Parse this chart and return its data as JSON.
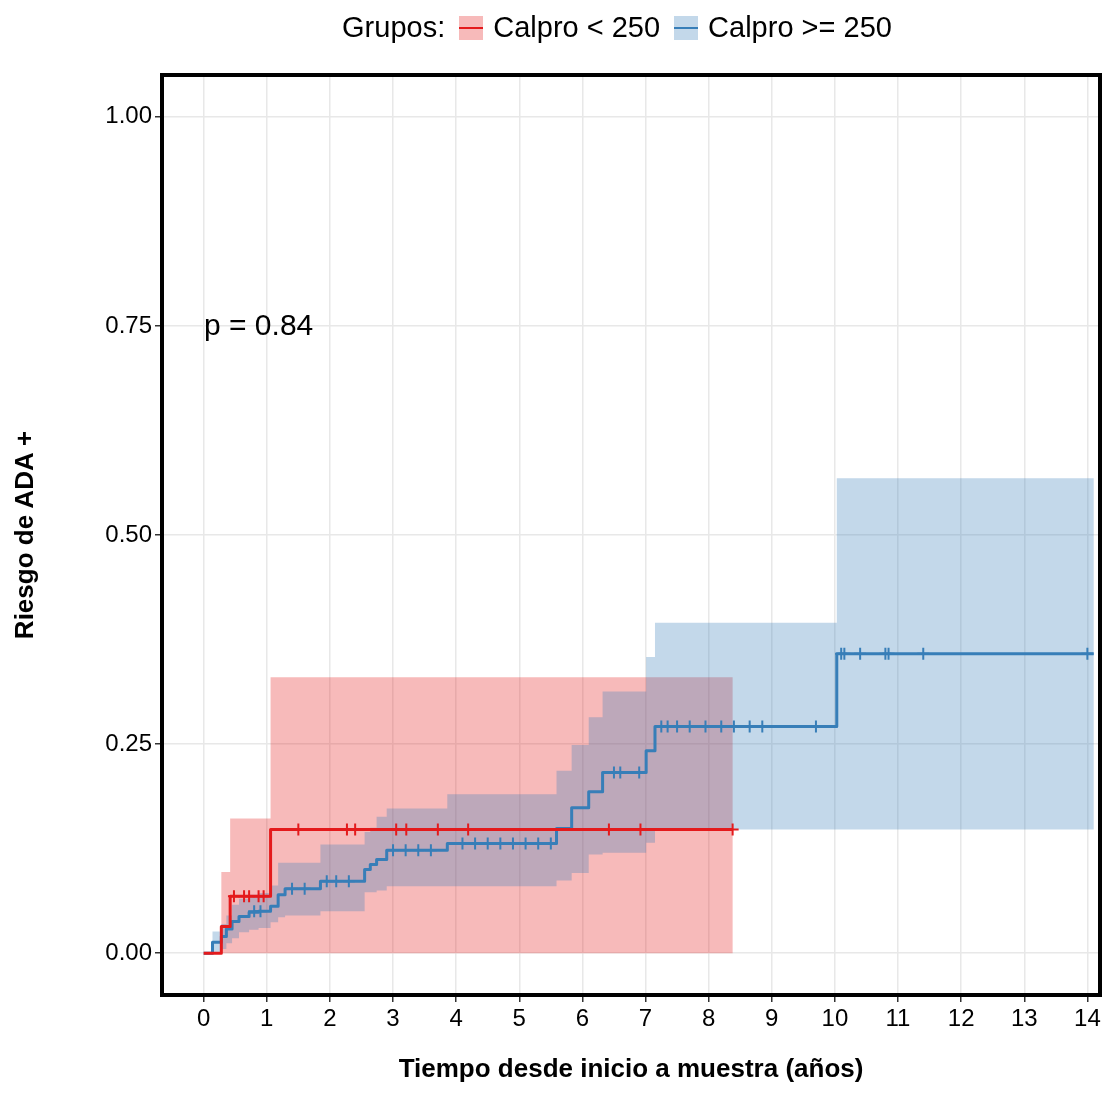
{
  "chart_data": {
    "type": "step",
    "xlabel": "Tiempo desde inicio a muestra (años)",
    "ylabel": "Riesgo de ADA +",
    "legend_title": "Grupos:",
    "legend": "top",
    "grid": true,
    "line_style": "solid",
    "annotations": [
      "p = 0.84"
    ],
    "xlim": [
      -0.66,
      14.2
    ],
    "xticks": [
      0,
      1,
      2,
      3,
      4,
      5,
      6,
      7,
      8,
      9,
      10,
      11,
      12,
      13,
      14
    ],
    "ylim": [
      -0.05,
      1.05
    ],
    "yticks": [
      {
        "value": 0,
        "label": "0.00"
      },
      {
        "value": 0.25,
        "label": "0.25"
      },
      {
        "value": 0.5,
        "label": "0.50"
      },
      {
        "value": 0.75,
        "label": "0.75"
      },
      {
        "value": 1,
        "label": "1.00"
      }
    ],
    "series": [
      {
        "name": "Calpro < 250",
        "color": "#e41a1c",
        "marker": "none",
        "x": [
          0,
          0.28,
          0.42,
          1.06,
          8.38
        ],
        "values": [
          0,
          0.032,
          0.068,
          0.148,
          0.148
        ],
        "lower": [
          0,
          0,
          0,
          0,
          0
        ],
        "upper": [
          0,
          0.097,
          0.161,
          0.33,
          0.33
        ]
      },
      {
        "name": "Calpro >= 250",
        "color": "#377eb8",
        "marker": "none",
        "x": [
          0,
          0.14,
          0.28,
          0.36,
          0.45,
          0.56,
          0.72,
          0.87,
          1.06,
          1.18,
          1.29,
          1.85,
          2.55,
          2.64,
          2.74,
          2.9,
          3.86,
          5.59,
          5.83,
          6.1,
          6.32,
          7.01,
          7.15,
          10.03,
          14.1
        ],
        "values": [
          0,
          0.013,
          0.02,
          0.029,
          0.038,
          0.044,
          0.049,
          0.05,
          0.056,
          0.07,
          0.077,
          0.086,
          0.1,
          0.106,
          0.112,
          0.123,
          0.131,
          0.149,
          0.174,
          0.193,
          0.216,
          0.242,
          0.271,
          0.358,
          0.358
        ],
        "lower": [
          0,
          0,
          0.005,
          0.012,
          0.018,
          0.025,
          0.028,
          0.03,
          0.037,
          0.043,
          0.045,
          0.05,
          0.073,
          0.073,
          0.075,
          0.08,
          0.08,
          0.087,
          0.096,
          0.118,
          0.12,
          0.132,
          0.148,
          0.148,
          0.148
        ],
        "upper": [
          0,
          0.026,
          0.035,
          0.045,
          0.058,
          0.065,
          0.07,
          0.072,
          0.081,
          0.108,
          0.108,
          0.13,
          0.145,
          0.15,
          0.163,
          0.173,
          0.19,
          0.218,
          0.249,
          0.282,
          0.313,
          0.354,
          0.395,
          0.568,
          0.568
        ]
      },
      {
        "type": "scatter",
        "color": "#e41a1c",
        "marker": "cross",
        "x": [
          0.48,
          0.64,
          0.72,
          0.87,
          0.95,
          1.5,
          2.27,
          2.4,
          3.05,
          3.21,
          3.71,
          4.19,
          6.42,
          6.92,
          8.38
        ],
        "values": [
          0.068,
          0.068,
          0.068,
          0.068,
          0.068,
          0.148,
          0.148,
          0.148,
          0.148,
          0.148,
          0.148,
          0.148,
          0.148,
          0.148,
          0.148
        ]
      },
      {
        "type": "scatter",
        "color": "#377eb8",
        "marker": "cross",
        "x": [
          0.8,
          0.9,
          1.4,
          1.6,
          1.95,
          2.1,
          2.3,
          3.0,
          3.2,
          3.4,
          3.6,
          4.1,
          4.3,
          4.5,
          4.7,
          4.9,
          5.1,
          5.3,
          5.5,
          6.5,
          6.6,
          6.9,
          7.25,
          7.35,
          7.5,
          7.7,
          7.95,
          8.2,
          8.4,
          8.65,
          8.85,
          9.7,
          10.1,
          10.15,
          10.4,
          10.8,
          10.85,
          11.4,
          14.0
        ],
        "values": [
          0.05,
          0.05,
          0.077,
          0.077,
          0.086,
          0.086,
          0.086,
          0.123,
          0.123,
          0.123,
          0.123,
          0.131,
          0.131,
          0.131,
          0.131,
          0.131,
          0.131,
          0.131,
          0.131,
          0.216,
          0.216,
          0.216,
          0.271,
          0.271,
          0.271,
          0.271,
          0.271,
          0.271,
          0.271,
          0.271,
          0.271,
          0.271,
          0.358,
          0.358,
          0.358,
          0.358,
          0.358,
          0.358,
          0.358
        ]
      }
    ]
  }
}
